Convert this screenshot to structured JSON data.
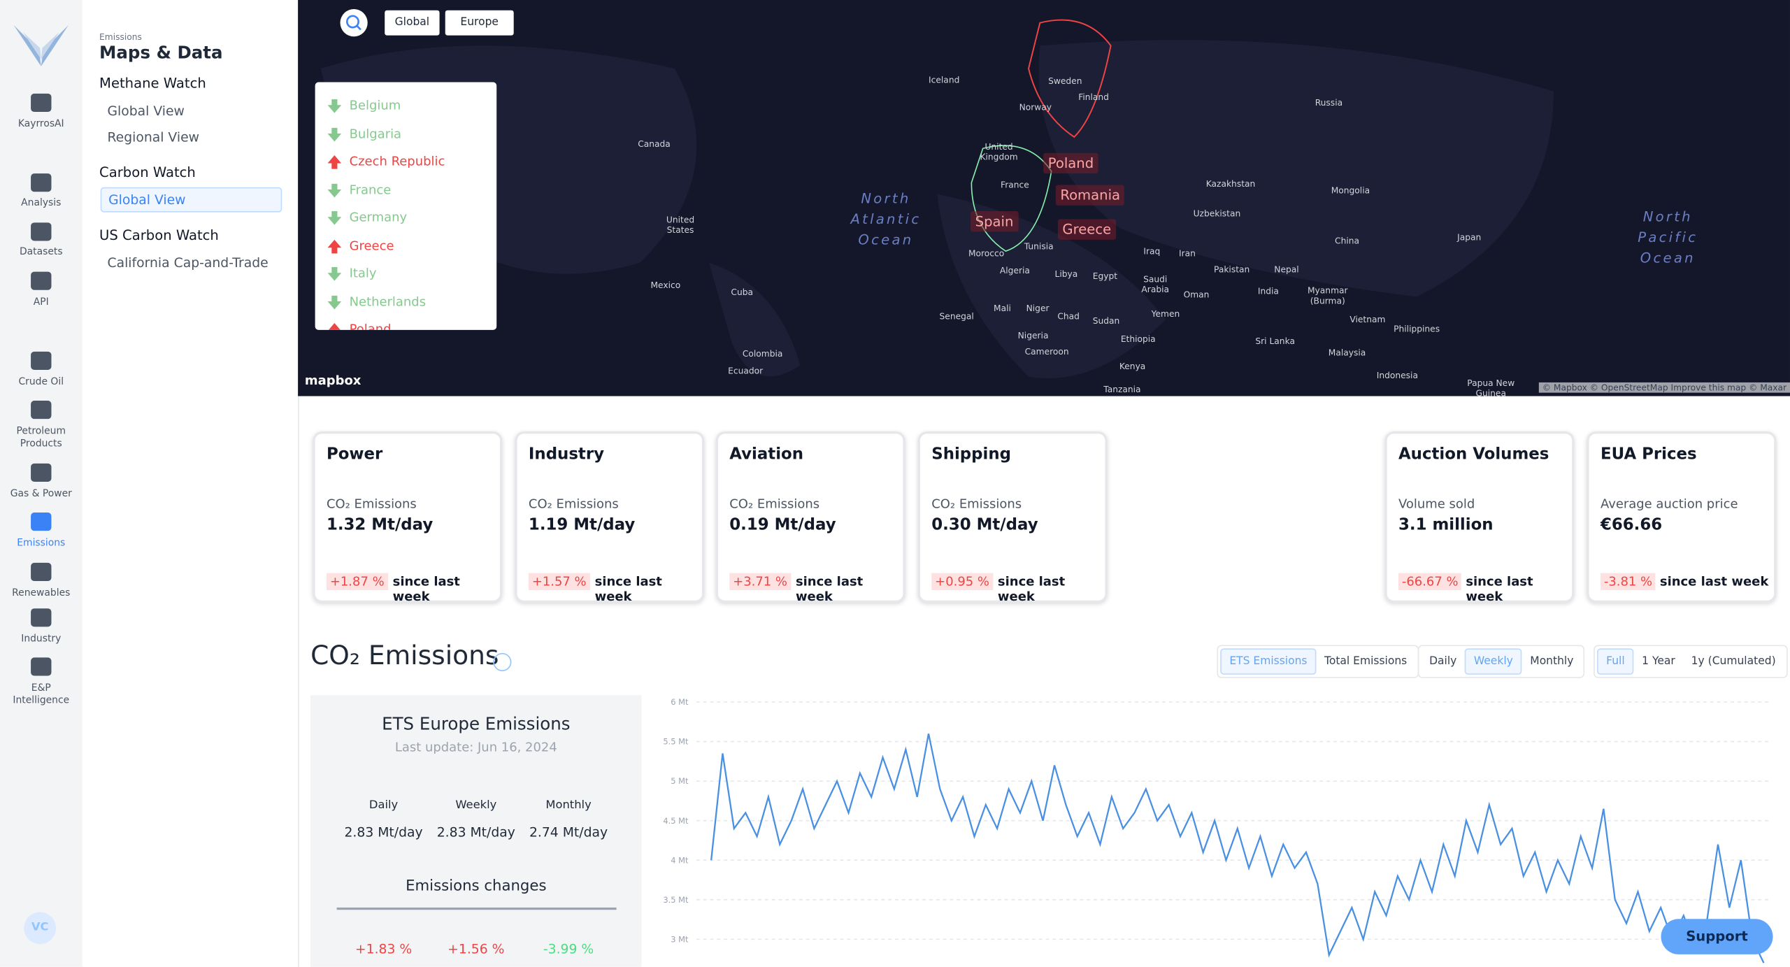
{
  "rail": [
    "KayrrosAI",
    "Analysis",
    "Datasets",
    "API",
    "Crude Oil",
    "Petroleum Products",
    "Gas & Power",
    "Emissions",
    "Renewables",
    "Industry",
    "E&P Intelligence"
  ],
  "rail_active": 7,
  "avatar": "VC",
  "sidebar": {
    "eyebrow": "Emissions",
    "title": "Maps & Data",
    "active_section": 1,
    "active_item": 0,
    "sections": [
      {
        "title": "Methane Watch",
        "items": [
          "Global View",
          "Regional View"
        ]
      },
      {
        "title": "Carbon Watch",
        "items": [
          "Global View"
        ]
      },
      {
        "title": "US Carbon Watch",
        "items": [
          "California Cap-and-Trade"
        ]
      }
    ]
  },
  "breadcrumbs": [
    "Global",
    "Europe"
  ],
  "country_list": [
    {
      "name": "Belgium",
      "trend": "down"
    },
    {
      "name": "Bulgaria",
      "trend": "down"
    },
    {
      "name": "Czech Republic",
      "trend": "up"
    },
    {
      "name": "France",
      "trend": "down"
    },
    {
      "name": "Germany",
      "trend": "down"
    },
    {
      "name": "Greece",
      "trend": "up"
    },
    {
      "name": "Italy",
      "trend": "down"
    },
    {
      "name": "Netherlands",
      "trend": "down"
    },
    {
      "name": "Poland",
      "trend": "up"
    }
  ],
  "map": {
    "labels": [
      "Iceland",
      "Sweden",
      "Finland",
      "Norway",
      "Russia",
      "Canada",
      "United Kingdom",
      "Kazakhstan",
      "Mongolia",
      "France",
      "Uzbekistan",
      "United States",
      "China",
      "Japan",
      "Tunisia",
      "Iraq",
      "Iran",
      "Morocco",
      "Algeria",
      "Libya",
      "Egypt",
      "Saudi Arabia",
      "Pakistan",
      "Nepal",
      "Mexico",
      "Cuba",
      "Oman",
      "India",
      "Myanmar (Burma)",
      "Yemen",
      "Senegal",
      "Mali",
      "Niger",
      "Chad",
      "Sudan",
      "Vietnam",
      "Philippines",
      "Nigeria",
      "Ethiopia",
      "Sri Lanka",
      "Cameroon",
      "Colombia",
      "Malaysia",
      "Ecuador",
      "Kenya",
      "Indonesia",
      "Tanzania",
      "Papua New Guinea"
    ],
    "oceans": [
      "North Atlantic Ocean",
      "North Pacific Ocean"
    ],
    "regions": [
      "Poland",
      "Romania",
      "Spain",
      "Greece"
    ],
    "logo": "mapbox",
    "attribution": "© Mapbox © OpenStreetMap Improve this map © Maxar"
  },
  "cards": [
    {
      "title": "Power",
      "metric": "CO₂ Emissions",
      "value": "1.32 Mt/day",
      "change": "+1.87 %",
      "since": "since last week"
    },
    {
      "title": "Industry",
      "metric": "CO₂ Emissions",
      "value": "1.19 Mt/day",
      "change": "+1.57 %",
      "since": "since last week"
    },
    {
      "title": "Aviation",
      "metric": "CO₂ Emissions",
      "value": "0.19 Mt/day",
      "change": "+3.71 %",
      "since": "since last week"
    },
    {
      "title": "Shipping",
      "metric": "CO₂ Emissions",
      "value": "0.30 Mt/day",
      "change": "+0.95 %",
      "since": "since last week"
    },
    {
      "title": "Auction Volumes",
      "metric": "Volume sold",
      "value": "3.1 million",
      "change": "-66.67 %",
      "since": "since last week"
    },
    {
      "title": "EUA Prices",
      "metric": "Average auction price",
      "value": "€66.66",
      "change": "-3.81 %",
      "since": "since last week"
    }
  ],
  "section_title": "CO₂ Emissions",
  "toggles": [
    {
      "options": [
        "ETS Emissions",
        "Total Emissions"
      ],
      "active": 0
    },
    {
      "options": [
        "Daily",
        "Weekly",
        "Monthly"
      ],
      "active": 1
    },
    {
      "options": [
        "Full",
        "1 Year",
        "1y (Cumulated)"
      ],
      "active": 0
    }
  ],
  "summary": {
    "title": "ETS Europe Emissions",
    "updated": "Last update: Jun 16, 2024",
    "columns": [
      {
        "label": "Daily",
        "value": "2.83 Mt/day",
        "change": "+1.83 %"
      },
      {
        "label": "Weekly",
        "value": "2.83 Mt/day",
        "change": "+1.56 %"
      },
      {
        "label": "Monthly",
        "value": "2.74 Mt/day",
        "change": "-3.99 %"
      }
    ],
    "changes_title": "Emissions changes"
  },
  "chart_data": {
    "type": "line",
    "color": "#4a90e2",
    "grid": true,
    "ylim": [
      2.65,
      6
    ],
    "yticks": [
      {
        "value": 6,
        "label": "6 Mt"
      },
      {
        "value": 5.5,
        "label": "5.5 Mt"
      },
      {
        "value": 5,
        "label": "5 Mt"
      },
      {
        "value": 4.5,
        "label": "4.5 Mt"
      },
      {
        "value": 4,
        "label": "4 Mt"
      },
      {
        "value": 3.5,
        "label": "3.5 Mt"
      },
      {
        "value": 3,
        "label": "3 Mt"
      }
    ],
    "values": [
      4.0,
      5.35,
      4.4,
      4.6,
      4.3,
      4.8,
      4.2,
      4.5,
      4.9,
      4.4,
      4.7,
      5.0,
      4.6,
      5.1,
      4.8,
      5.3,
      4.9,
      5.4,
      4.8,
      5.6,
      4.9,
      4.5,
      4.8,
      4.3,
      4.7,
      4.4,
      4.9,
      4.6,
      5.0,
      4.5,
      5.2,
      4.7,
      4.3,
      4.6,
      4.2,
      4.8,
      4.4,
      4.6,
      4.9,
      4.5,
      4.7,
      4.3,
      4.6,
      4.1,
      4.5,
      4.0,
      4.4,
      3.9,
      4.3,
      3.8,
      4.2,
      3.9,
      4.1,
      3.7,
      2.8,
      3.1,
      3.4,
      3.0,
      3.6,
      3.3,
      3.8,
      3.5,
      4.0,
      3.6,
      4.2,
      3.8,
      4.5,
      4.1,
      4.7,
      4.2,
      4.4,
      3.8,
      4.1,
      3.6,
      4.0,
      3.7,
      4.3,
      3.9,
      4.65,
      3.5,
      3.2,
      3.6,
      3.1,
      3.4,
      3.0,
      3.3,
      2.9,
      3.2,
      4.2,
      3.4,
      4.0,
      3.0,
      2.7
    ]
  },
  "support": "Support"
}
